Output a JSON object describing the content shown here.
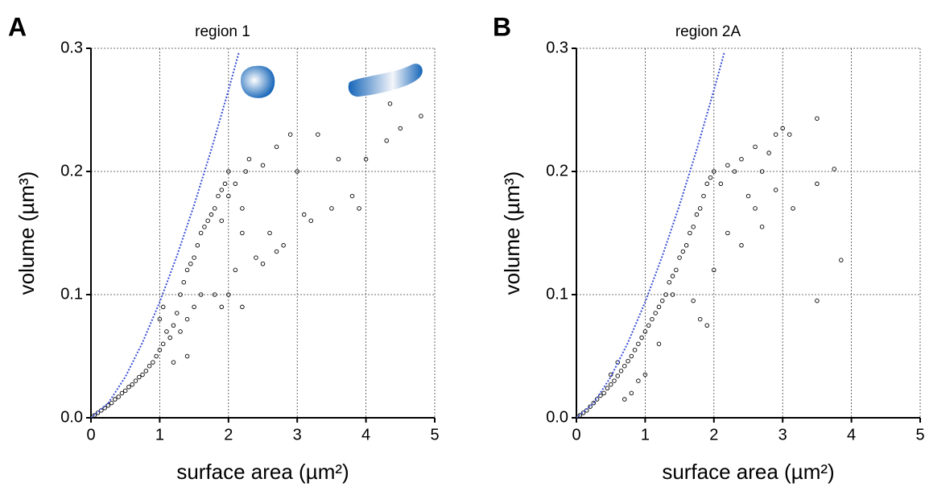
{
  "chart_data": [
    {
      "type": "scatter",
      "panel": "A",
      "title": "region 1",
      "x_label": "surface area (µm²)",
      "y_label": "volume (µm³)",
      "xlim": [
        0,
        5
      ],
      "ylim": [
        0,
        0.3
      ],
      "xticks": [
        0,
        1,
        2,
        3,
        4,
        5
      ],
      "yticks": [
        {
          "value": 0,
          "label": "0.0"
        },
        0.1,
        0.2,
        0.3
      ],
      "grid": true,
      "marker_color": "#000000",
      "x": [
        0.05,
        0.1,
        0.15,
        0.2,
        0.25,
        0.3,
        0.35,
        0.4,
        0.45,
        0.5,
        0.55,
        0.6,
        0.65,
        0.7,
        0.75,
        0.8,
        0.85,
        0.9,
        0.95,
        1.0,
        1.05,
        1.1,
        1.0,
        1.05,
        1.15,
        1.2,
        1.25,
        1.3,
        1.35,
        1.4,
        1.45,
        1.5,
        1.3,
        1.4,
        1.5,
        1.55,
        1.6,
        1.65,
        1.7,
        1.75,
        1.8,
        1.85,
        1.9,
        1.95,
        2.0,
        2.1,
        1.6,
        1.8,
        2.0,
        2.1,
        2.2,
        2.3,
        2.25,
        2.4,
        2.5,
        2.6,
        2.7,
        2.8,
        2.9,
        3.0,
        3.1,
        3.2,
        3.3,
        3.5,
        3.6,
        3.8,
        3.9,
        4.0,
        4.3,
        4.35,
        4.5,
        4.8,
        2.0,
        2.2,
        1.9,
        2.5,
        2.7,
        2.2,
        1.9,
        1.4,
        1.2
      ],
      "values": [
        0.002,
        0.004,
        0.006,
        0.008,
        0.01,
        0.012,
        0.015,
        0.017,
        0.02,
        0.022,
        0.025,
        0.027,
        0.03,
        0.033,
        0.035,
        0.038,
        0.042,
        0.045,
        0.05,
        0.055,
        0.06,
        0.07,
        0.08,
        0.09,
        0.065,
        0.075,
        0.085,
        0.1,
        0.11,
        0.12,
        0.125,
        0.13,
        0.07,
        0.08,
        0.09,
        0.14,
        0.15,
        0.155,
        0.16,
        0.165,
        0.17,
        0.18,
        0.185,
        0.19,
        0.2,
        0.19,
        0.1,
        0.1,
        0.1,
        0.12,
        0.15,
        0.21,
        0.2,
        0.13,
        0.205,
        0.15,
        0.22,
        0.14,
        0.23,
        0.2,
        0.165,
        0.16,
        0.23,
        0.17,
        0.21,
        0.18,
        0.17,
        0.21,
        0.225,
        0.255,
        0.235,
        0.245,
        0.18,
        0.17,
        0.16,
        0.125,
        0.135,
        0.09,
        0.09,
        0.05,
        0.045
      ],
      "curve": {
        "color": "#3a4fd6",
        "x": [
          0,
          0.25,
          0.5,
          0.75,
          1,
          1.25,
          1.5,
          1.75,
          2,
          2.15
        ],
        "values": [
          0,
          0.0118,
          0.0332,
          0.0611,
          0.094,
          0.1314,
          0.1727,
          0.2177,
          0.266,
          0.2964
        ]
      }
    },
    {
      "type": "scatter",
      "panel": "B",
      "title": "region 2A",
      "x_label": "surface area (µm²)",
      "y_label": "volume (µm³)",
      "xlim": [
        0,
        5
      ],
      "ylim": [
        0,
        0.3
      ],
      "xticks": [
        0,
        1,
        2,
        3,
        4,
        5
      ],
      "yticks": [
        {
          "value": 0,
          "label": "0.0"
        },
        0.1,
        0.2,
        0.3
      ],
      "grid": true,
      "marker_color": "#000000",
      "x": [
        0.05,
        0.1,
        0.15,
        0.2,
        0.25,
        0.3,
        0.35,
        0.4,
        0.45,
        0.5,
        0.55,
        0.6,
        0.65,
        0.7,
        0.75,
        0.8,
        0.85,
        0.9,
        0.95,
        1.0,
        1.05,
        1.1,
        1.15,
        1.2,
        1.25,
        1.3,
        1.35,
        1.4,
        1.45,
        1.5,
        1.55,
        1.6,
        1.65,
        1.7,
        1.75,
        1.8,
        1.85,
        1.9,
        1.95,
        2.0,
        2.1,
        2.2,
        2.3,
        2.4,
        2.5,
        2.6,
        2.7,
        2.8,
        2.9,
        3.0,
        3.1,
        3.5,
        3.5,
        3.75,
        3.85,
        3.5,
        3.15,
        2.2,
        2.4,
        2.0,
        1.8,
        1.9,
        1.7,
        0.8,
        0.9,
        1.0,
        0.7,
        1.2,
        1.4,
        0.6,
        0.5,
        2.6,
        2.9,
        2.7
      ],
      "values": [
        0.002,
        0.004,
        0.006,
        0.009,
        0.012,
        0.015,
        0.018,
        0.02,
        0.024,
        0.027,
        0.03,
        0.034,
        0.038,
        0.042,
        0.046,
        0.05,
        0.055,
        0.06,
        0.065,
        0.07,
        0.075,
        0.08,
        0.085,
        0.09,
        0.095,
        0.1,
        0.11,
        0.115,
        0.12,
        0.13,
        0.135,
        0.14,
        0.15,
        0.155,
        0.165,
        0.17,
        0.18,
        0.19,
        0.195,
        0.2,
        0.19,
        0.205,
        0.2,
        0.21,
        0.18,
        0.22,
        0.2,
        0.215,
        0.23,
        0.235,
        0.23,
        0.243,
        0.19,
        0.202,
        0.128,
        0.095,
        0.17,
        0.15,
        0.14,
        0.12,
        0.08,
        0.075,
        0.095,
        0.02,
        0.03,
        0.035,
        0.015,
        0.06,
        0.1,
        0.045,
        0.035,
        0.17,
        0.185,
        0.155
      ],
      "curve": {
        "color": "#3a4fd6",
        "x": [
          0,
          0.25,
          0.5,
          0.75,
          1,
          1.25,
          1.5,
          1.75,
          2,
          2.15
        ],
        "values": [
          0,
          0.0118,
          0.0332,
          0.0611,
          0.094,
          0.1314,
          0.1727,
          0.2177,
          0.266,
          0.2964
        ]
      }
    }
  ]
}
